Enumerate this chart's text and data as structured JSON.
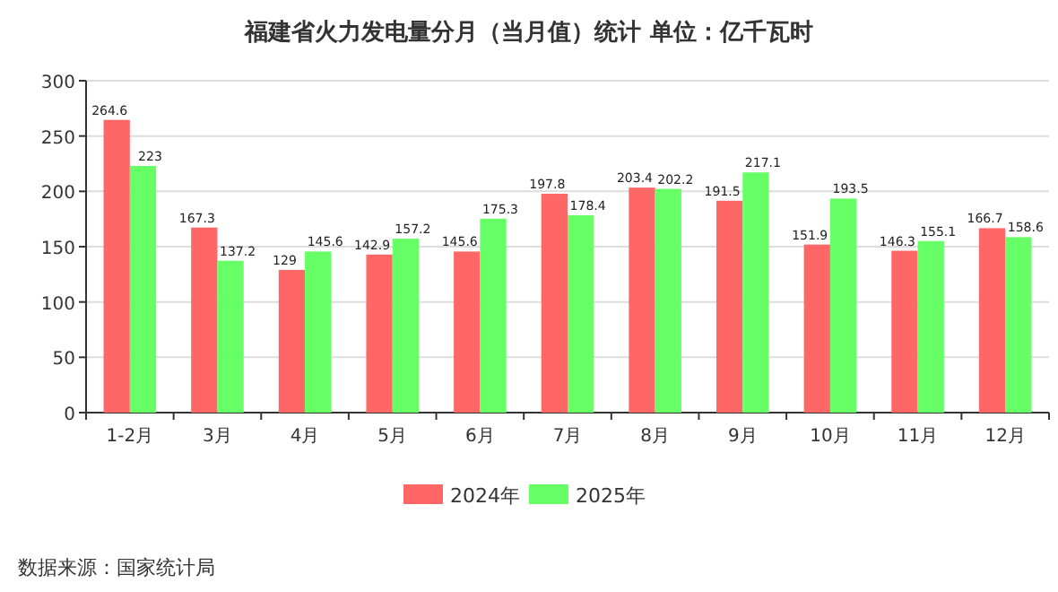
{
  "chart_data": {
    "type": "bar",
    "title": "福建省火力发电量分月（当月值）统计 单位：亿千瓦时",
    "categories": [
      "1-2月",
      "3月",
      "4月",
      "5月",
      "6月",
      "7月",
      "8月",
      "9月",
      "10月",
      "11月",
      "12月"
    ],
    "series": [
      {
        "name": "2024年",
        "color": "#ff6666",
        "values": [
          264.6,
          167.3,
          129,
          142.9,
          145.6,
          197.8,
          203.4,
          191.5,
          151.9,
          146.3,
          166.7
        ]
      },
      {
        "name": "2025年",
        "color": "#66ff66",
        "values": [
          223,
          137.2,
          145.6,
          157.2,
          175.3,
          178.4,
          202.2,
          217.1,
          193.5,
          155.1,
          158.6
        ]
      }
    ],
    "ylim": [
      0,
      300
    ],
    "yticks": [
      0,
      50,
      100,
      150,
      200,
      250,
      300
    ],
    "grid": "y",
    "legend": "bottom",
    "data_labels": true,
    "annotations": [
      "数据来源：国家统计局"
    ]
  }
}
